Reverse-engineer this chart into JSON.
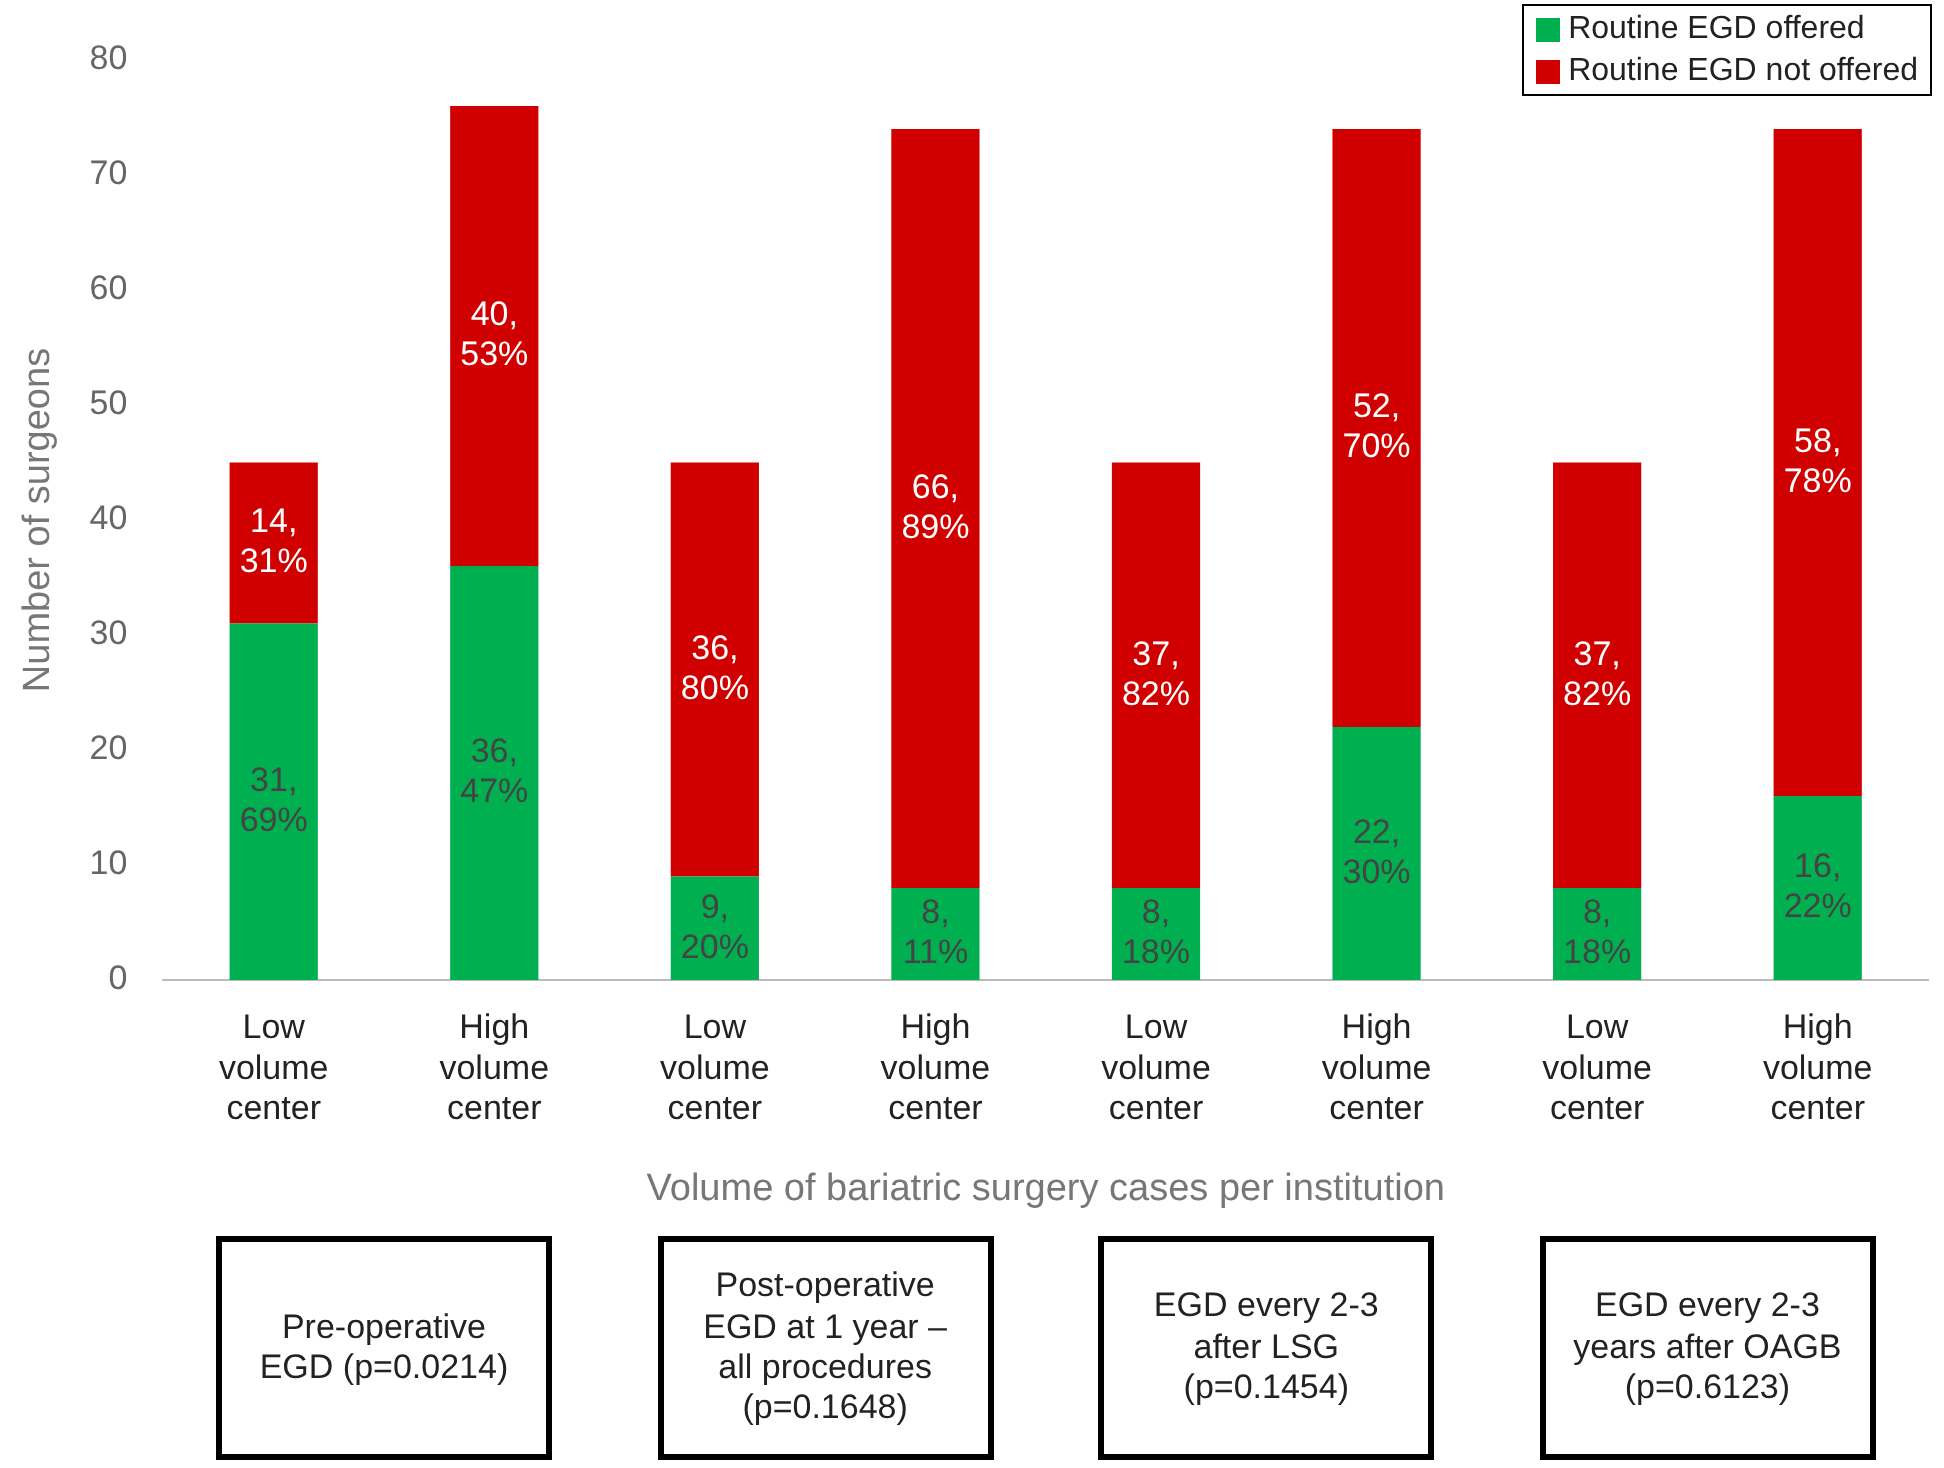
{
  "chart_data": {
    "type": "bar",
    "stacked": true,
    "xlabel": "Volume of bariatric surgery cases per institution",
    "ylabel": "Number of surgeons",
    "categories": [
      "Low volume center",
      "High volume center",
      "Low volume center",
      "High volume center",
      "Low volume center",
      "High volume center",
      "Low volume center",
      "High volume center"
    ],
    "series": [
      {
        "name": "Routine EGD offered",
        "color": "#00b050",
        "values": [
          31,
          36,
          9,
          8,
          8,
          22,
          8,
          16
        ],
        "value_labels": [
          "31, 69%",
          "36, 47%",
          "9, 20%",
          "8, 11%",
          "8, 18%",
          "22, 30%",
          "8, 18%",
          "16, 22%"
        ]
      },
      {
        "name": "Routine EGD not offered",
        "color": "#d00000",
        "values": [
          14,
          40,
          36,
          66,
          37,
          52,
          37,
          58
        ],
        "value_labels": [
          "14, 31%",
          "40, 53%",
          "36, 80%",
          "66, 89%",
          "37, 82%",
          "52, 70%",
          "37, 82%",
          "58, 78%"
        ]
      }
    ],
    "ylim": [
      0,
      80
    ],
    "yticks": [
      0,
      10,
      20,
      30,
      40,
      50,
      60,
      70,
      80
    ],
    "grid": false,
    "legend": "top right",
    "annotations": [
      "Pre-operative EGD (p=0.0214)",
      "Post-operative EGD at 1 year – all procedures (p=0.1648)",
      "EGD every 2-3 after LSG (p=0.1454)",
      "EGD every 2-3 years after OAGB (p=0.6123)"
    ]
  }
}
